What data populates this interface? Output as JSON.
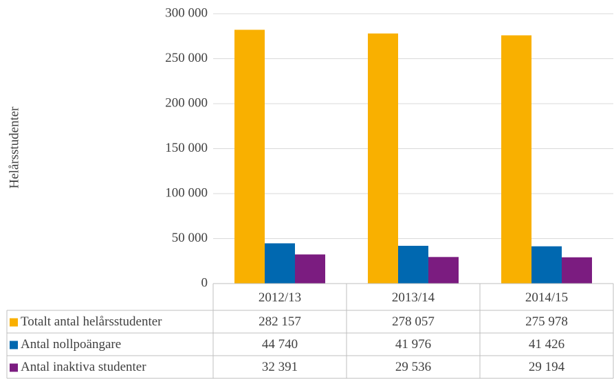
{
  "chart_data": {
    "type": "bar",
    "y_axis_label": "Helårsstudenter",
    "categories": [
      "2012/13",
      "2013/14",
      "2014/15"
    ],
    "series": [
      {
        "name": "Totalt antal helårsstudenter",
        "color": "#f9b000",
        "values": [
          282157,
          278057,
          275978
        ],
        "value_labels": [
          "282 157",
          "278 057",
          "275 978"
        ]
      },
      {
        "name": "Antal nollpoängare",
        "color": "#0068b0",
        "values": [
          44740,
          41976,
          41426
        ],
        "value_labels": [
          "44 740",
          "41 976",
          "41 426"
        ]
      },
      {
        "name": "Antal inaktiva studenter",
        "color": "#7b1c80",
        "values": [
          32391,
          29536,
          29194
        ],
        "value_labels": [
          "32 391",
          "29 536",
          "29 194"
        ]
      }
    ],
    "ylim": [
      0,
      300000
    ],
    "yticks": [
      0,
      {
        "value": 50000,
        "label": "50 000"
      },
      {
        "value": 100000,
        "label": "100 000"
      },
      {
        "value": 150000,
        "label": "150 000"
      },
      {
        "value": 200000,
        "label": "200 000"
      },
      {
        "value": 250000,
        "label": "250 000"
      },
      {
        "value": 300000,
        "label": "300 000"
      }
    ],
    "grid": true,
    "data_table": true
  }
}
